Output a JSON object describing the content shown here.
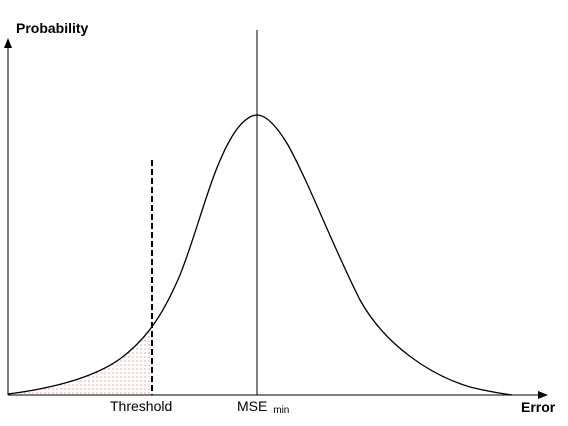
{
  "labels": {
    "y_axis": "Probability",
    "x_axis": "Error",
    "threshold": "Threshold",
    "mse_main": "MSE",
    "mse_sub": "min"
  },
  "colors": {
    "line": "#000000",
    "shading_dots": "#e06666",
    "background": "#ffffff"
  }
}
